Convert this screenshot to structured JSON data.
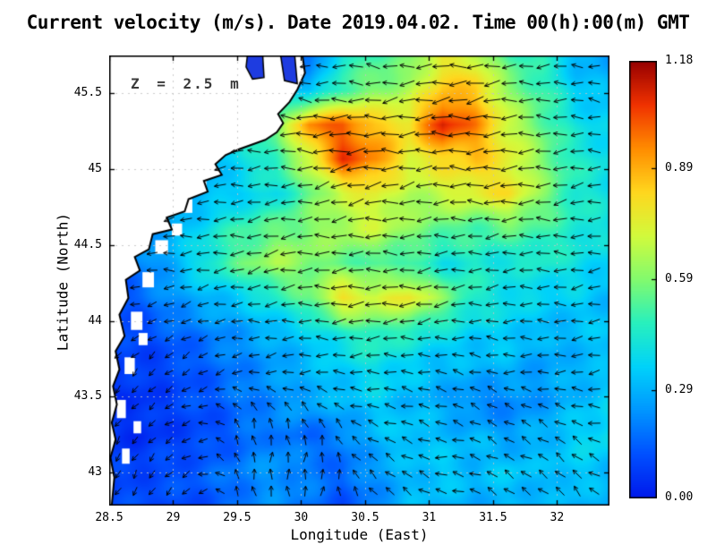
{
  "title": "Current velocity (m/s). Date 2019.04.02. Time 00(h):00(m) GMT",
  "annotation": "Z = 2.5 m",
  "axes": {
    "xlabel": "Longitude (East)",
    "ylabel": "Latitude (North)",
    "x_ticks": [
      28.5,
      29,
      29.5,
      30,
      30.5,
      31,
      31.5,
      32
    ],
    "x_tick_labels": [
      "28.5",
      "29",
      "29.5",
      "30",
      "30.5",
      "31",
      "31.5",
      "32"
    ],
    "y_ticks": [
      43,
      43.5,
      44,
      44.5,
      45,
      45.5
    ],
    "y_tick_labels": [
      "43",
      "43.5",
      "44",
      "44.5",
      "45",
      "45.5"
    ],
    "lon_range": [
      28.5,
      32.41
    ],
    "lat_range": [
      42.785,
      45.745
    ],
    "grid": "dotted"
  },
  "colorbar": {
    "min": 0,
    "max": 1.18,
    "tick_values": [
      0,
      0.29,
      0.59,
      0.89,
      1.18
    ],
    "tick_labels": [
      "0.00",
      "0.29",
      "0.59",
      "0.89",
      "1.18"
    ]
  },
  "colors": {
    "land": "#ffffff",
    "coastline": "#000000",
    "inlet_fill": "#1e3ce0",
    "arrow": "#000000",
    "gridline": "rgba(195,195,195,0.85)"
  },
  "chart_data": {
    "type": "heatmap",
    "overlay": "quiver (current direction arrows)",
    "field": "sea surface current speed (m/s) at depth Z = 2.5 m",
    "title": "Current velocity (m/s). Date 2019.04.02. Time 00(h):00(m) GMT",
    "xlabel": "Longitude (East)",
    "ylabel": "Latitude (North)",
    "value_range": [
      0,
      1.18
    ],
    "legend_position": "right colorbar",
    "colormap_rgb": [
      [
        0,
        25,
        235
      ],
      [
        0,
        80,
        255
      ],
      [
        0,
        150,
        255
      ],
      [
        0,
        210,
        250
      ],
      [
        40,
        240,
        190
      ],
      [
        130,
        250,
        110
      ],
      [
        210,
        250,
        60
      ],
      [
        255,
        215,
        30
      ],
      [
        255,
        140,
        0
      ],
      [
        240,
        50,
        0
      ],
      [
        150,
        0,
        0
      ]
    ],
    "lon_grid": [
      28.5,
      28.76,
      29.02,
      29.28,
      29.54,
      29.8,
      30.06,
      30.32,
      30.58,
      30.84,
      31.1,
      31.36,
      31.62,
      31.88,
      32.14,
      32.4
    ],
    "lat_grid": [
      45.74,
      45.51,
      45.28,
      45.06,
      44.83,
      44.6,
      44.37,
      44.14,
      43.92,
      43.69,
      43.46,
      43.23,
      43.0,
      42.78
    ],
    "speed": [
      [
        0.2,
        0.2,
        0.2,
        0.2,
        0.25,
        0.12,
        0.15,
        0.45,
        0.5,
        0.55,
        0.75,
        0.7,
        0.5,
        0.45,
        0.3,
        0.25
      ],
      [
        0.2,
        0.2,
        0.2,
        0.2,
        0.3,
        0.35,
        0.3,
        0.5,
        0.6,
        0.65,
        0.85,
        0.85,
        0.6,
        0.5,
        0.35,
        0.3
      ],
      [
        0.2,
        0.2,
        0.2,
        0.25,
        0.4,
        0.55,
        0.95,
        1.0,
        0.85,
        0.8,
        1.1,
        0.95,
        0.7,
        0.55,
        0.4,
        0.35
      ],
      [
        0.2,
        0.2,
        0.2,
        0.3,
        0.4,
        0.5,
        0.7,
        1.05,
        0.95,
        0.75,
        0.8,
        0.85,
        0.75,
        0.6,
        0.45,
        0.4
      ],
      [
        0.2,
        0.2,
        0.25,
        0.3,
        0.35,
        0.4,
        0.55,
        0.7,
        0.75,
        0.65,
        0.7,
        0.75,
        0.8,
        0.6,
        0.45,
        0.4
      ],
      [
        0.2,
        0.25,
        0.3,
        0.4,
        0.5,
        0.55,
        0.6,
        0.65,
        0.7,
        0.6,
        0.55,
        0.5,
        0.55,
        0.5,
        0.45,
        0.4
      ],
      [
        0.15,
        0.2,
        0.3,
        0.45,
        0.55,
        0.65,
        0.6,
        0.55,
        0.5,
        0.5,
        0.4,
        0.45,
        0.4,
        0.45,
        0.4,
        0.35
      ],
      [
        0.1,
        0.15,
        0.25,
        0.3,
        0.35,
        0.45,
        0.55,
        0.8,
        0.72,
        0.78,
        0.6,
        0.45,
        0.4,
        0.35,
        0.35,
        0.3
      ],
      [
        0.1,
        0.1,
        0.15,
        0.2,
        0.25,
        0.3,
        0.35,
        0.45,
        0.5,
        0.45,
        0.4,
        0.35,
        0.35,
        0.3,
        0.3,
        0.35
      ],
      [
        0.08,
        0.08,
        0.1,
        0.15,
        0.2,
        0.25,
        0.3,
        0.35,
        0.4,
        0.35,
        0.3,
        0.3,
        0.3,
        0.25,
        0.3,
        0.3
      ],
      [
        0.06,
        0.05,
        0.1,
        0.12,
        0.18,
        0.22,
        0.28,
        0.3,
        0.35,
        0.3,
        0.28,
        0.2,
        0.2,
        0.25,
        0.3,
        0.35
      ],
      [
        0.06,
        0.05,
        0.08,
        0.1,
        0.15,
        0.2,
        0.15,
        0.2,
        0.3,
        0.35,
        0.3,
        0.3,
        0.25,
        0.3,
        0.35,
        0.4
      ],
      [
        0.08,
        0.1,
        0.12,
        0.15,
        0.2,
        0.25,
        0.2,
        0.15,
        0.25,
        0.3,
        0.35,
        0.3,
        0.35,
        0.3,
        0.35,
        0.3
      ],
      [
        0.1,
        0.1,
        0.1,
        0.12,
        0.18,
        0.22,
        0.18,
        0.12,
        0.2,
        0.3,
        0.3,
        0.28,
        0.3,
        0.28,
        0.3,
        0.28
      ]
    ],
    "arrow_angles_deg": [
      [
        180,
        180,
        175,
        185,
        190,
        180,
        172,
        178,
        185,
        190,
        182,
        176,
        180
      ],
      [
        172,
        176,
        182,
        186,
        181,
        176,
        181,
        186,
        191,
        186,
        181,
        176,
        171
      ],
      [
        181,
        186,
        191,
        181,
        176,
        181,
        186,
        181,
        176,
        181,
        186,
        181,
        176
      ],
      [
        191,
        196,
        201,
        191,
        186,
        191,
        196,
        191,
        186,
        181,
        186,
        191,
        186
      ],
      [
        171,
        176,
        181,
        186,
        191,
        186,
        181,
        176,
        181,
        186,
        181,
        176,
        181
      ],
      [
        181,
        186,
        191,
        196,
        191,
        186,
        181,
        186,
        191,
        186,
        181,
        186,
        191
      ],
      [
        201,
        211,
        196,
        186,
        181,
        176,
        186,
        191,
        186,
        181,
        176,
        181,
        186
      ],
      [
        221,
        231,
        211,
        201,
        191,
        186,
        181,
        171,
        161,
        171,
        181,
        191,
        186
      ],
      [
        231,
        221,
        201,
        120,
        100,
        130,
        155,
        171,
        161,
        151,
        141,
        161,
        171
      ],
      [
        241,
        231,
        211,
        110,
        90,
        75,
        130,
        151,
        171,
        161,
        151,
        141,
        151
      ],
      [
        251,
        241,
        221,
        115,
        95,
        80,
        110,
        141,
        161,
        151,
        141,
        131,
        141
      ]
    ],
    "coastline": [
      [
        30.01,
        45.745
      ],
      [
        30.03,
        45.63
      ],
      [
        29.97,
        45.52
      ],
      [
        29.91,
        45.44
      ],
      [
        29.82,
        45.36
      ],
      [
        29.86,
        45.3
      ],
      [
        29.81,
        45.24
      ],
      [
        29.72,
        45.19
      ],
      [
        29.52,
        45.13
      ],
      [
        29.41,
        45.09
      ],
      [
        29.33,
        45.03
      ],
      [
        29.38,
        44.96
      ],
      [
        29.24,
        44.92
      ],
      [
        29.27,
        44.85
      ],
      [
        29.12,
        44.8
      ],
      [
        29.09,
        44.72
      ],
      [
        28.95,
        44.68
      ],
      [
        28.99,
        44.6
      ],
      [
        28.84,
        44.57
      ],
      [
        28.81,
        44.47
      ],
      [
        28.7,
        44.42
      ],
      [
        28.74,
        44.33
      ],
      [
        28.63,
        44.27
      ],
      [
        28.65,
        44.15
      ],
      [
        28.58,
        44.04
      ],
      [
        28.62,
        43.9
      ],
      [
        28.55,
        43.8
      ],
      [
        28.58,
        43.68
      ],
      [
        28.53,
        43.57
      ],
      [
        28.56,
        43.45
      ],
      [
        28.52,
        43.33
      ],
      [
        28.55,
        43.22
      ],
      [
        28.51,
        43.1
      ],
      [
        28.54,
        42.97
      ],
      [
        28.52,
        42.785
      ]
    ],
    "inlets": [
      [
        [
          29.58,
          45.745
        ],
        [
          29.7,
          45.745
        ],
        [
          29.71,
          45.6
        ],
        [
          29.62,
          45.59
        ],
        [
          29.57,
          45.67
        ]
      ],
      [
        [
          29.84,
          45.745
        ],
        [
          29.95,
          45.745
        ],
        [
          29.97,
          45.56
        ],
        [
          29.87,
          45.58
        ]
      ]
    ],
    "coast_steps": [
      [
        28.56,
        43.48,
        0.07,
        0.12
      ],
      [
        28.62,
        43.76,
        0.08,
        0.11
      ],
      [
        28.67,
        44.06,
        0.09,
        0.12
      ],
      [
        28.76,
        44.32,
        0.09,
        0.1
      ],
      [
        28.86,
        44.53,
        0.1,
        0.09
      ],
      [
        28.6,
        43.16,
        0.06,
        0.1
      ],
      [
        28.69,
        43.34,
        0.06,
        0.08
      ],
      [
        28.73,
        43.92,
        0.07,
        0.08
      ],
      [
        29.16,
        44.97,
        0.1,
        0.1
      ],
      [
        29.06,
        44.8,
        0.09,
        0.09
      ],
      [
        28.99,
        44.64,
        0.08,
        0.08
      ]
    ]
  }
}
